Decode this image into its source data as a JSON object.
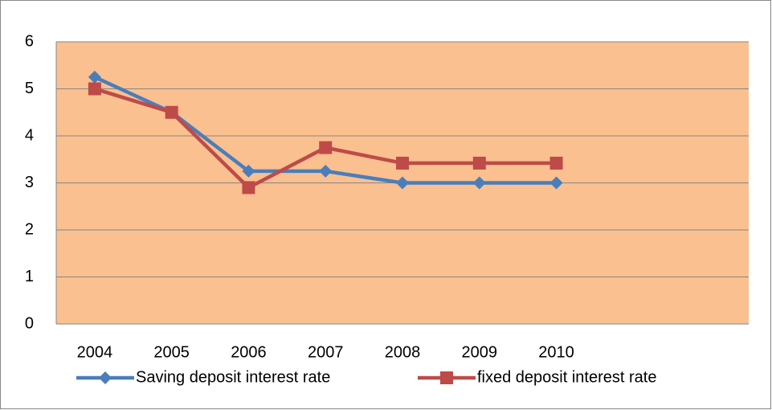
{
  "chart_data": {
    "type": "line",
    "categories": [
      "2004",
      "2005",
      "2006",
      "2007",
      "2008",
      "2009",
      "2010",
      null,
      null
    ],
    "series": [
      {
        "name": "Saving deposit interest rate",
        "color": "#4a7ebb",
        "marker": "diamond",
        "values": [
          5.25,
          4.5,
          3.25,
          3.25,
          3,
          3,
          3,
          null,
          null
        ]
      },
      {
        "name": "fixed deposit interest rate",
        "color": "#be4b48",
        "marker": "square",
        "values": [
          5,
          4.5,
          2.9,
          3.75,
          3.42,
          3.42,
          3.42,
          null,
          null
        ]
      }
    ],
    "ylim": [
      0,
      6
    ],
    "yticks": [
      0,
      1,
      2,
      3,
      4,
      5,
      6
    ],
    "grid": true,
    "plot_background": "#fac090",
    "legend": "bottom"
  }
}
